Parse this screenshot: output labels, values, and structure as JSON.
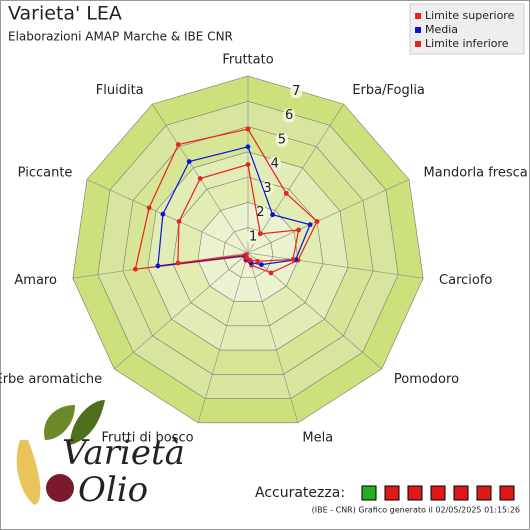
{
  "chart_data": {
    "type": "radar",
    "title": "Varieta' LEA",
    "subtitle": "Elaborazioni AMAP Marche & IBE CNR",
    "categories": [
      "Fruttato",
      "Erba/Foglia",
      "Mandorla fresca",
      "Carciofo",
      "Pomodoro",
      "Mela",
      "Frutti di bosco",
      "Erbe aromatiche",
      "Amaro",
      "Piccante",
      "Fluidita"
    ],
    "series": [
      {
        "name": "Limite superiore",
        "color": "#e8231e",
        "values": [
          4.9,
          2.8,
          3.0,
          2.0,
          1.2,
          0.5,
          0.3,
          0.2,
          4.5,
          4.3,
          5.1
        ]
      },
      {
        "name": "Media",
        "color": "#0a14d8",
        "values": [
          4.2,
          1.8,
          2.7,
          1.9,
          0.7,
          0.4,
          0.25,
          0.15,
          3.6,
          3.7,
          4.3
        ]
      },
      {
        "name": "Limite inferiore",
        "color": "#e8231e",
        "values": [
          3.5,
          0.9,
          2.2,
          1.8,
          0.5,
          0.3,
          0.2,
          0.1,
          2.8,
          3.0,
          3.5
        ]
      }
    ],
    "ylim": [
      0,
      7
    ],
    "yticks": [
      1,
      2,
      3,
      4,
      5,
      6,
      7
    ],
    "legend": "top-right"
  },
  "accuracy": {
    "label": "Accuratezza:",
    "boxes": [
      "#22b022",
      "#e01818",
      "#e01818",
      "#e01818",
      "#e01818",
      "#e01818",
      "#e01818"
    ]
  },
  "footer": "(IBE - CNR) Grafico generato il 02/05/2025 01:15:26",
  "logo": {
    "word1": "Varietà",
    "word2": "Olio"
  }
}
